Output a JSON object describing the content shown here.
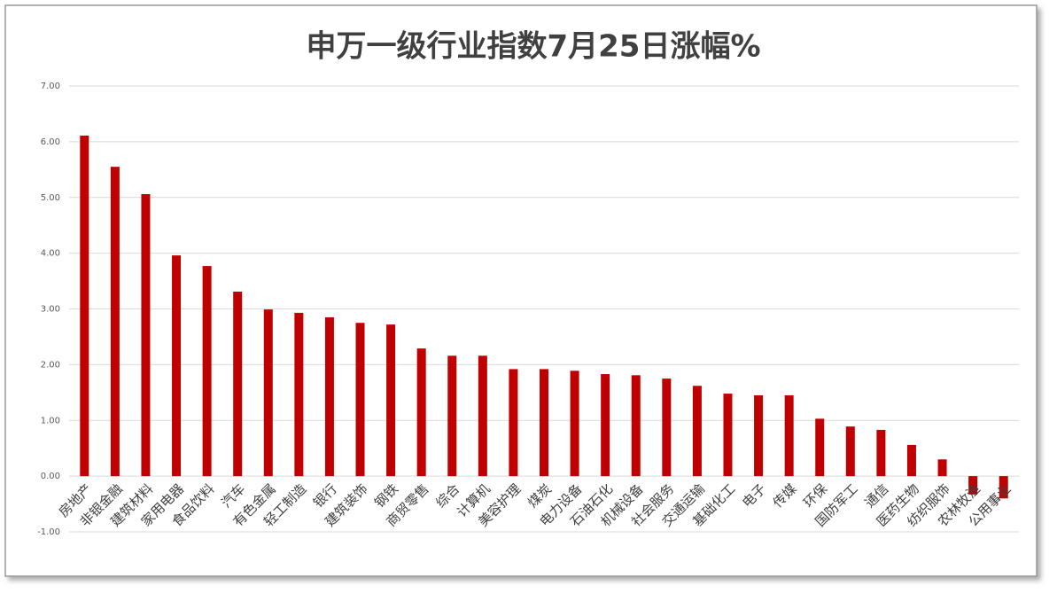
{
  "chart_data": {
    "type": "bar",
    "title": "申万一级行业指数7月25日涨幅%",
    "categories": [
      "房地产",
      "非银金融",
      "建筑材料",
      "家用电器",
      "食品饮料",
      "汽车",
      "有色金属",
      "轻工制造",
      "银行",
      "建筑装饰",
      "钢铁",
      "商贸零售",
      "综合",
      "计算机",
      "美容护理",
      "煤炭",
      "电力设备",
      "石油石化",
      "机械设备",
      "社会服务",
      "交通运输",
      "基础化工",
      "电子",
      "传媒",
      "环保",
      "国防军工",
      "通信",
      "医药生物",
      "纺织服饰",
      "农林牧渔",
      "公用事业"
    ],
    "values": [
      6.11,
      5.55,
      5.06,
      3.96,
      3.77,
      3.31,
      2.99,
      2.93,
      2.85,
      2.75,
      2.72,
      2.29,
      2.16,
      2.16,
      1.92,
      1.92,
      1.89,
      1.83,
      1.81,
      1.75,
      1.62,
      1.48,
      1.45,
      1.45,
      1.03,
      0.89,
      0.83,
      0.56,
      0.3,
      -0.33,
      -0.4
    ],
    "color": "#c00000",
    "ylim": [
      -1,
      7
    ],
    "yticks": [
      {
        "value": -1,
        "label": "-1.00"
      },
      {
        "value": 0,
        "label": "0.00"
      },
      {
        "value": 1,
        "label": "1.00"
      },
      {
        "value": 2,
        "label": "2.00"
      },
      {
        "value": 3,
        "label": "3.00"
      },
      {
        "value": 4,
        "label": "4.00"
      },
      {
        "value": 5,
        "label": "5.00"
      },
      {
        "value": 6,
        "label": "6.00"
      },
      {
        "value": 7,
        "label": "7.00"
      }
    ],
    "grid": true
  }
}
